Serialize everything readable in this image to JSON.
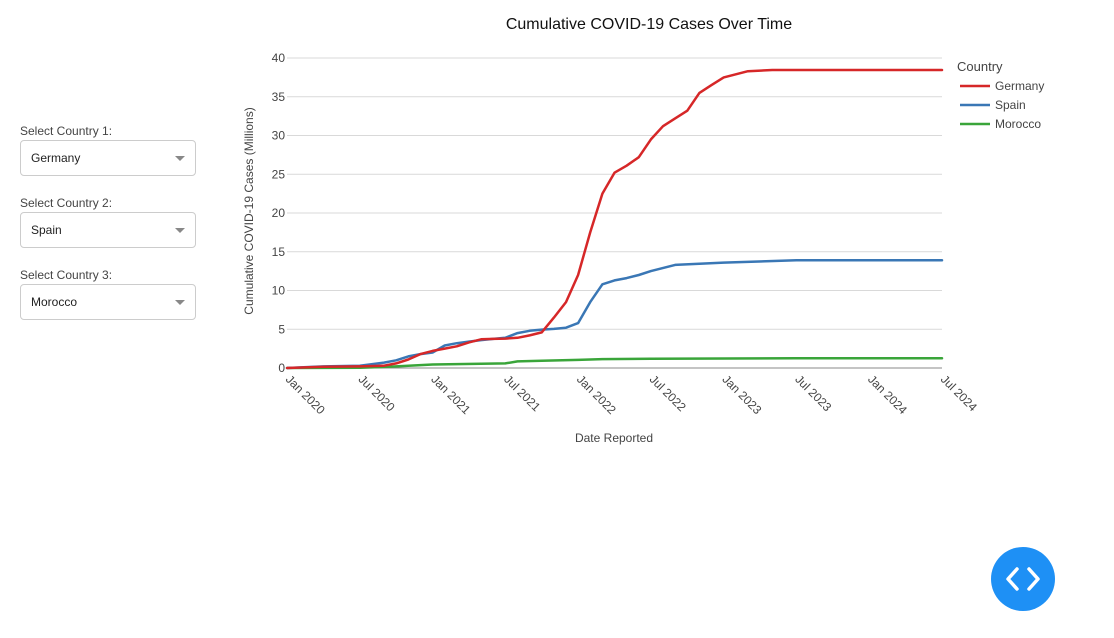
{
  "controls": [
    {
      "label": "Select Country 1:",
      "value": "Germany"
    },
    {
      "label": "Select Country 2:",
      "value": "Spain"
    },
    {
      "label": "Select Country 3:",
      "value": "Morocco"
    }
  ],
  "colors": {
    "germany": "#d62728",
    "spain": "#3a77b5",
    "morocco": "#3aa53a",
    "fab": "#1e90f5"
  },
  "fab_icon": "code-icon",
  "chart_data": {
    "type": "line",
    "title": "Cumulative COVID-19 Cases Over Time",
    "xlabel": "Date Reported",
    "ylabel": "Cumulative COVID-19 Cases (Millions)",
    "ylim": [
      0,
      40
    ],
    "yticks": [
      0,
      5,
      10,
      15,
      20,
      25,
      30,
      35,
      40
    ],
    "xlim": [
      "2020-01",
      "2024-07"
    ],
    "xticks": [
      "2020-01",
      "2020-07",
      "2021-01",
      "2021-07",
      "2022-01",
      "2022-07",
      "2023-01",
      "2023-07",
      "2024-01",
      "2024-07"
    ],
    "xtick_labels": [
      "Jan 2020",
      "Jul 2020",
      "Jan 2021",
      "Jul 2021",
      "Jan 2022",
      "Jul 2022",
      "Jan 2023",
      "Jul 2023",
      "Jan 2024",
      "Jul 2024"
    ],
    "grid": true,
    "legend_title": "Country",
    "legend_position": "top-right",
    "series": [
      {
        "name": "Germany",
        "x": [
          "2020-01",
          "2020-04",
          "2020-07",
          "2020-09",
          "2020-10",
          "2020-11",
          "2020-12",
          "2021-01",
          "2021-02",
          "2021-03",
          "2021-04",
          "2021-05",
          "2021-06",
          "2021-07",
          "2021-08",
          "2021-09",
          "2021-10",
          "2021-11",
          "2021-12",
          "2022-01",
          "2022-02",
          "2022-03",
          "2022-04",
          "2022-05",
          "2022-06",
          "2022-07",
          "2022-08",
          "2022-09",
          "2022-10",
          "2022-11",
          "2022-12",
          "2023-01",
          "2023-02",
          "2023-03",
          "2023-05",
          "2023-07",
          "2024-07"
        ],
        "values": [
          0,
          0.15,
          0.2,
          0.3,
          0.6,
          1.1,
          1.8,
          2.2,
          2.5,
          2.8,
          3.3,
          3.7,
          3.75,
          3.8,
          3.9,
          4.2,
          4.6,
          6.5,
          8.5,
          12.0,
          17.5,
          22.5,
          25.2,
          26.1,
          27.2,
          29.5,
          31.2,
          32.2,
          33.2,
          35.5,
          36.5,
          37.5,
          37.9,
          38.3,
          38.45,
          38.45,
          38.45
        ]
      },
      {
        "name": "Spain",
        "x": [
          "2020-01",
          "2020-04",
          "2020-07",
          "2020-09",
          "2020-10",
          "2020-11",
          "2020-12",
          "2021-01",
          "2021-02",
          "2021-03",
          "2021-04",
          "2021-05",
          "2021-06",
          "2021-07",
          "2021-08",
          "2021-09",
          "2021-10",
          "2021-11",
          "2021-12",
          "2022-01",
          "2022-02",
          "2022-03",
          "2022-04",
          "2022-05",
          "2022-06",
          "2022-07",
          "2022-09",
          "2023-01",
          "2023-07",
          "2024-07"
        ],
        "values": [
          0,
          0.2,
          0.3,
          0.7,
          1.0,
          1.5,
          1.8,
          2.0,
          2.9,
          3.2,
          3.4,
          3.6,
          3.75,
          3.9,
          4.5,
          4.8,
          4.95,
          5.05,
          5.2,
          5.8,
          8.5,
          10.8,
          11.3,
          11.6,
          12.0,
          12.5,
          13.3,
          13.6,
          13.9,
          13.9
        ]
      },
      {
        "name": "Morocco",
        "x": [
          "2020-01",
          "2020-07",
          "2020-10",
          "2021-01",
          "2021-07",
          "2021-08",
          "2021-10",
          "2022-01",
          "2022-03",
          "2022-07",
          "2023-07",
          "2024-07"
        ],
        "values": [
          0,
          0.02,
          0.2,
          0.45,
          0.6,
          0.85,
          0.93,
          1.05,
          1.15,
          1.2,
          1.25,
          1.25
        ]
      }
    ]
  }
}
